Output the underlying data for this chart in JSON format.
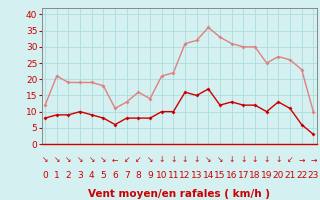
{
  "hours": [
    0,
    1,
    2,
    3,
    4,
    5,
    6,
    7,
    8,
    9,
    10,
    11,
    12,
    13,
    14,
    15,
    16,
    17,
    18,
    19,
    20,
    21,
    22,
    23
  ],
  "wind_avg": [
    8,
    9,
    9,
    10,
    9,
    8,
    6,
    8,
    8,
    8,
    10,
    10,
    16,
    15,
    17,
    12,
    13,
    12,
    12,
    10,
    13,
    11,
    6,
    3
  ],
  "wind_gust": [
    12,
    21,
    19,
    19,
    19,
    18,
    11,
    13,
    16,
    14,
    21,
    22,
    31,
    32,
    36,
    33,
    31,
    30,
    30,
    25,
    27,
    26,
    23,
    10
  ],
  "wind_dirs": [
    "↘",
    "↘",
    "↘",
    "↘",
    "↘",
    "↘",
    "←",
    "↙",
    "↙",
    "↘",
    "↓",
    "↓",
    "↓",
    "↓",
    "↘",
    "↘",
    "↓",
    "↓",
    "↓",
    "↓",
    "↓",
    "↙",
    "→",
    "→"
  ],
  "avg_color": "#cc0000",
  "gust_color": "#e08080",
  "bg_color": "#d4f0f0",
  "grid_color": "#aadddd",
  "xlabel": "Vent moyen/en rafales ( km/h )",
  "xlabel_color": "#cc0000",
  "yticks": [
    0,
    5,
    10,
    15,
    20,
    25,
    30,
    35,
    40
  ],
  "ylim": [
    0,
    42
  ],
  "xlim": [
    -0.3,
    23.3
  ],
  "tick_color": "#cc0000",
  "spine_color": "#888888",
  "axis_label_fontsize": 7.5,
  "tick_fontsize": 6.5,
  "dir_fontsize": 5.5
}
